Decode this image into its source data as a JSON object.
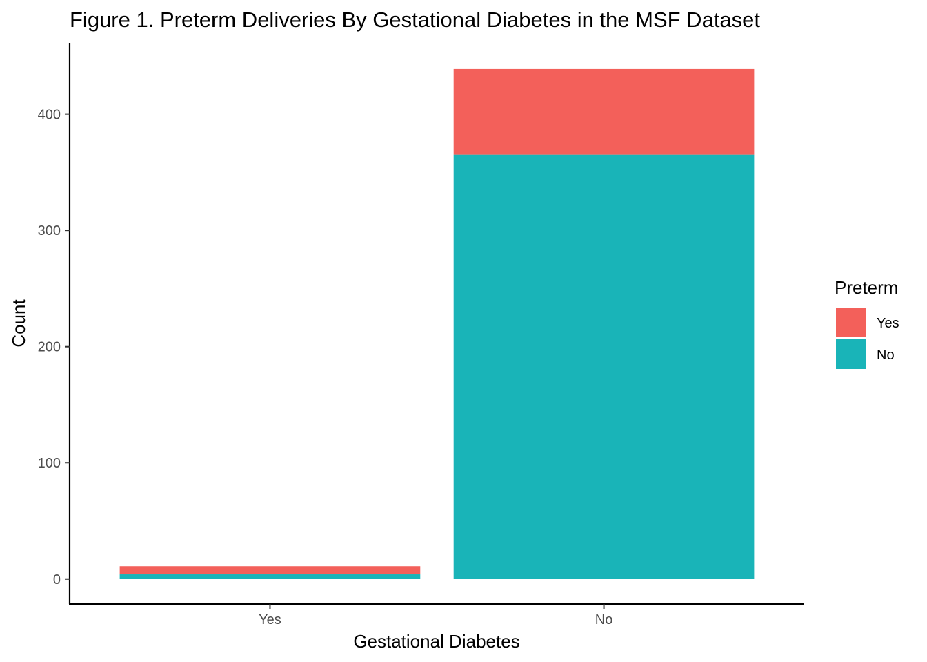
{
  "chart_data": {
    "type": "bar",
    "stacked": true,
    "title": "Figure 1. Preterm Deliveries By Gestational Diabetes in the MSF Dataset",
    "xlabel": "Gestational Diabetes",
    "ylabel": "Count",
    "categories": [
      "Yes",
      "No"
    ],
    "series": [
      {
        "name": "No",
        "values": [
          4,
          365
        ],
        "color": "#19B4B8"
      },
      {
        "name": "Yes",
        "values": [
          7,
          74
        ],
        "color": "#F3605A"
      }
    ],
    "y_ticks": [
      0,
      100,
      200,
      300,
      400
    ],
    "ylim": [
      -21.5,
      461.5
    ],
    "grid": false,
    "legend": {
      "title": "Preterm",
      "position": "right",
      "entries": [
        {
          "label": "Yes",
          "color": "#F3605A"
        },
        {
          "label": "No",
          "color": "#19B4B8"
        }
      ]
    }
  }
}
